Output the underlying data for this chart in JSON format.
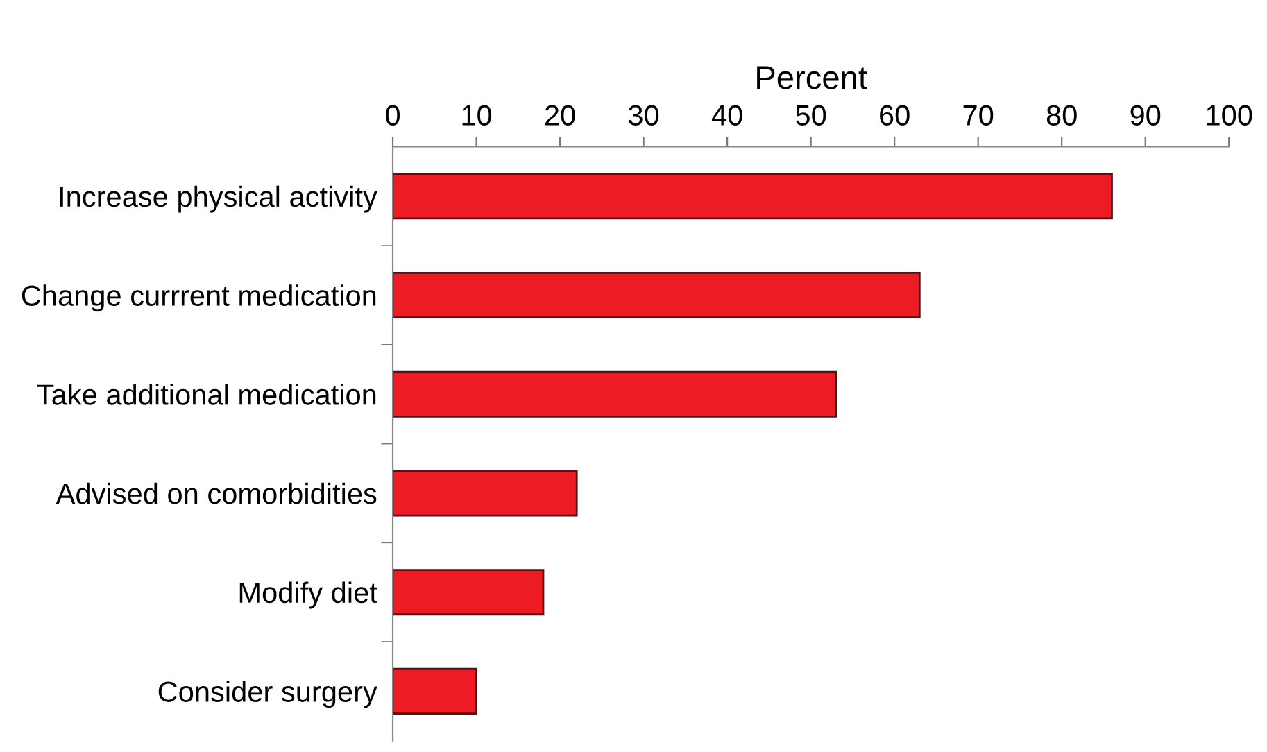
{
  "chart_data": {
    "type": "bar",
    "orientation": "horizontal",
    "xlabel": "Percent",
    "categories": [
      "Increase physical activity",
      "Change currrent medication",
      "Take additional medication",
      "Advised on comorbidities",
      "Modify diet",
      "Consider surgery"
    ],
    "values": [
      86,
      63,
      53,
      22,
      18,
      10
    ],
    "color": "#ed1c24",
    "xlim": [
      0,
      100
    ],
    "xticks": [
      0,
      10,
      20,
      30,
      40,
      50,
      60,
      70,
      80,
      90,
      100
    ],
    "grid": false,
    "legend": false
  }
}
